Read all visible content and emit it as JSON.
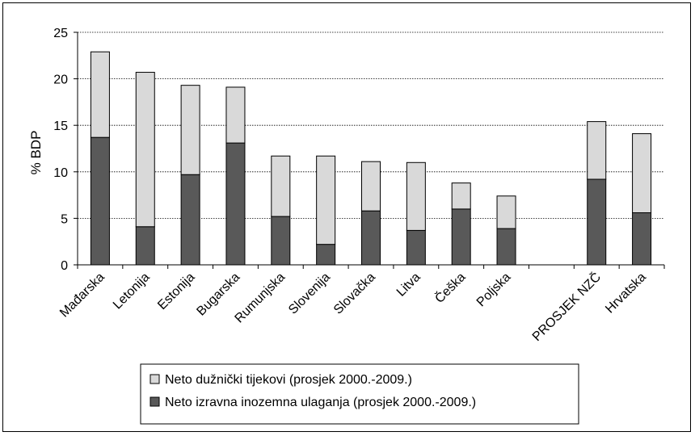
{
  "chart_data": {
    "type": "bar",
    "stacked": true,
    "categories": [
      "Mađarska",
      "Letonija",
      "Estonija",
      "Bugarska",
      "Rumunjska",
      "Slovenija",
      "Slovačka",
      "Litva",
      "Češka",
      "Poljska",
      "",
      "PROSJEK NZČ",
      "Hrvatska"
    ],
    "series": [
      {
        "name": "Neto izravna inozemna ulaganja (prosjek 2000.-2009.)",
        "color": "#595959",
        "values": [
          13.7,
          4.1,
          9.7,
          13.1,
          5.2,
          2.2,
          5.8,
          3.7,
          6.0,
          3.9,
          null,
          9.2,
          5.6
        ]
      },
      {
        "name": "Neto dužnički tijekovi (prosjek 2000.-2009.)",
        "color": "#d9d9d9",
        "values": [
          9.2,
          16.6,
          9.6,
          6.0,
          6.5,
          9.5,
          5.3,
          7.3,
          2.8,
          3.5,
          null,
          6.2,
          8.5
        ]
      }
    ],
    "legend_order": [
      1,
      0
    ],
    "ylabel": "% BDP",
    "ylim": [
      0,
      25
    ],
    "yticks": [
      0,
      5,
      10,
      15,
      20,
      25
    ],
    "grid": "horizontal dotted",
    "legend_position": "bottom"
  }
}
